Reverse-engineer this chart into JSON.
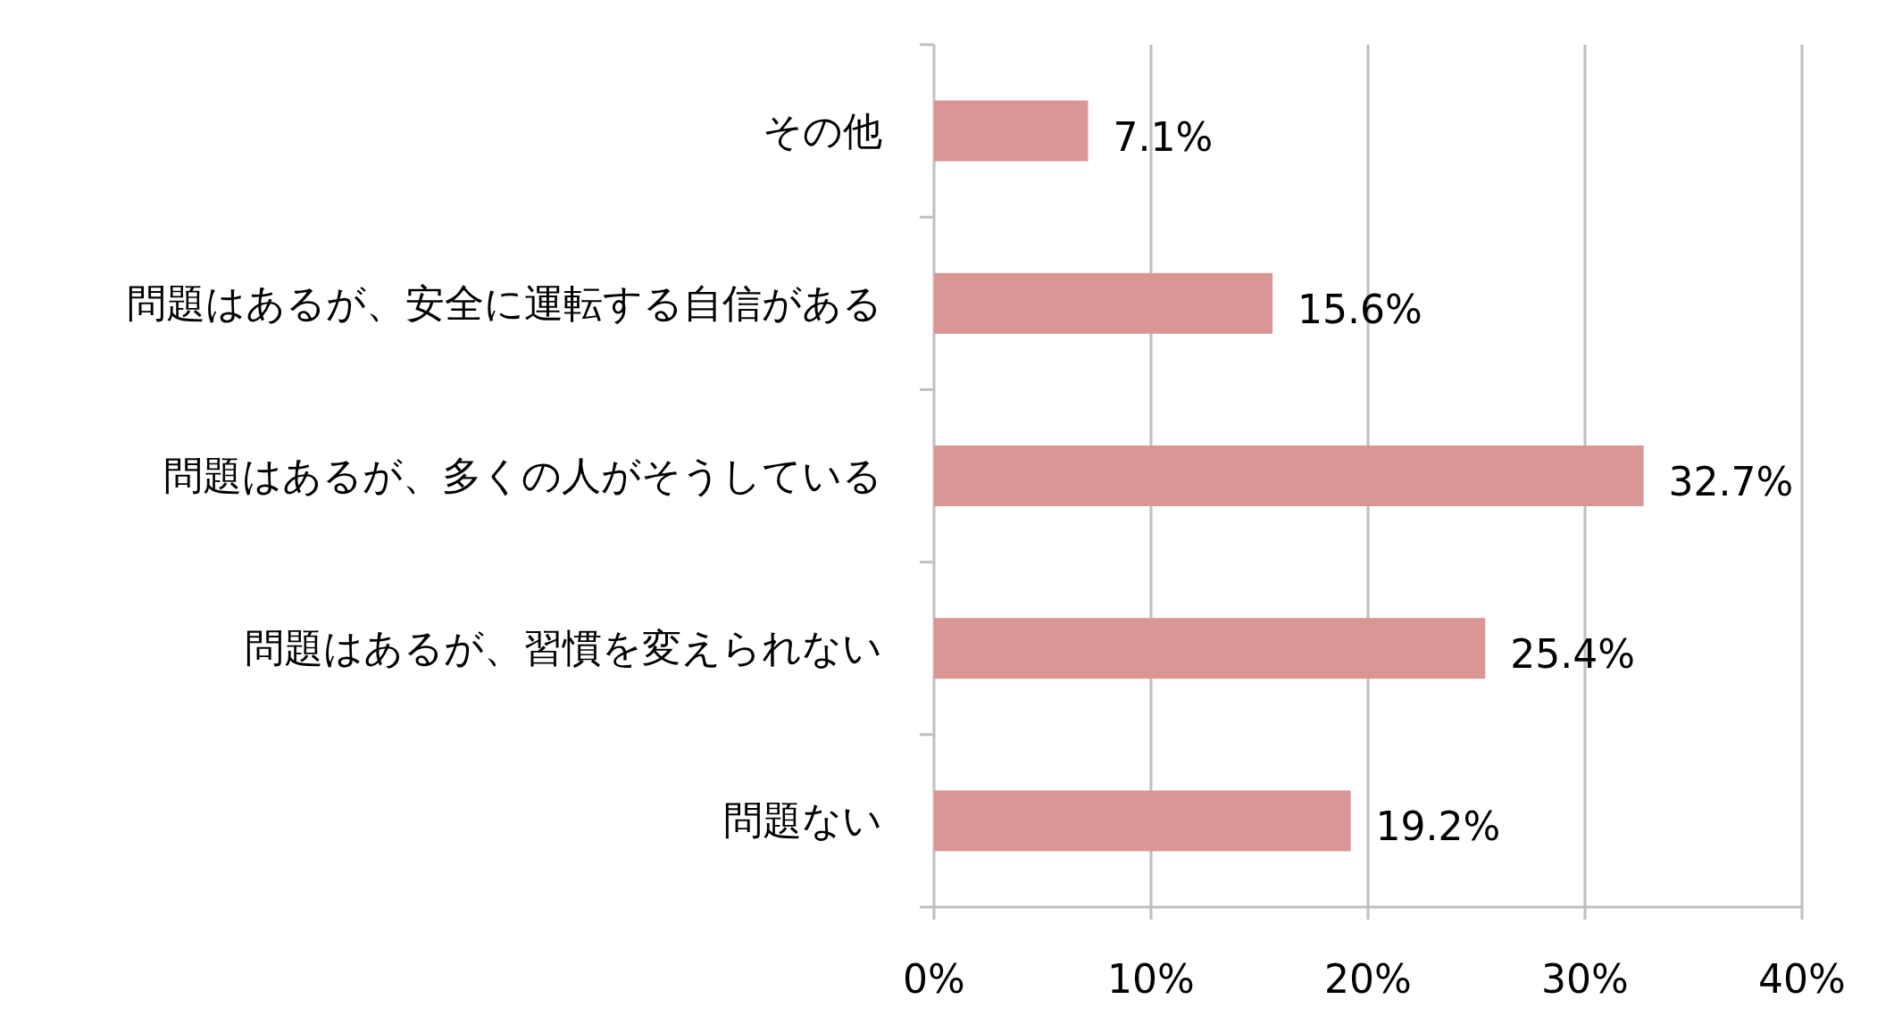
{
  "chart_data": {
    "type": "bar",
    "orientation": "horizontal",
    "categories": [
      "その他",
      "問題はあるが、安全に運転する自信がある",
      "問題はあるが、多くの人がそうしている",
      "問題はあるが、習慣を変えられない",
      "問題ない"
    ],
    "values": [
      7.1,
      15.6,
      32.7,
      25.4,
      19.2
    ],
    "value_labels": [
      "7.1%",
      "15.6%",
      "32.7%",
      "25.4%",
      "19.2%"
    ],
    "color": "#d99694",
    "xlim": [
      0,
      40
    ],
    "xticks": [
      {
        "value": 0,
        "label": "0%"
      },
      {
        "value": 10,
        "label": "10%"
      },
      {
        "value": 20,
        "label": "20%"
      },
      {
        "value": 30,
        "label": "30%"
      },
      {
        "value": 40,
        "label": "40%"
      }
    ],
    "grid": "x"
  }
}
